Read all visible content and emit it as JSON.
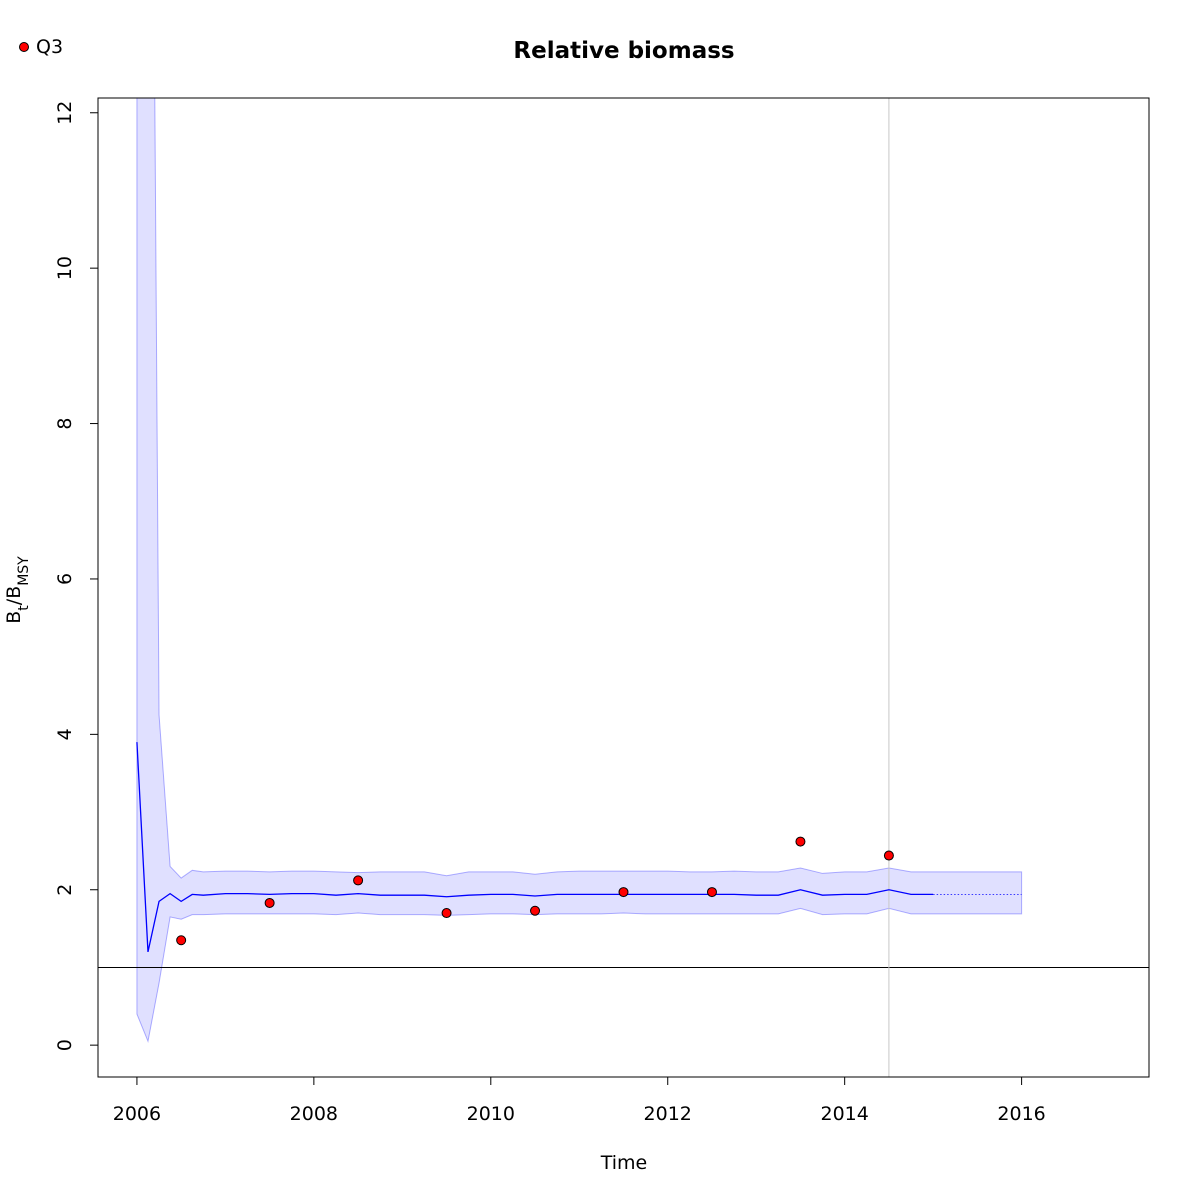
{
  "chart_data": {
    "type": "line",
    "title": "Relative biomass",
    "xlabel": "Time",
    "ylabel_parts": [
      {
        "text": "B"
      },
      {
        "text": "t",
        "sub": true
      },
      {
        "text": "/B"
      },
      {
        "text": "MSY",
        "sub": true
      }
    ],
    "xlim": [
      2005.56,
      2017.44
    ],
    "ylim": [
      -0.41,
      12.19
    ],
    "xticks": [
      2006,
      2008,
      2010,
      2012,
      2014,
      2016
    ],
    "yticks": [
      0,
      2,
      4,
      6,
      8,
      10,
      12
    ],
    "hline": 1,
    "vline": 2014.5,
    "band": {
      "color": "#0000ff",
      "x": [
        2006,
        2006.125,
        2006.25,
        2006.375,
        2006.5,
        2006.625,
        2006.75,
        2007,
        2007.25,
        2007.5,
        2007.75,
        2008,
        2008.25,
        2008.5,
        2008.75,
        2009,
        2009.25,
        2009.5,
        2009.75,
        2010,
        2010.25,
        2010.5,
        2010.75,
        2011,
        2011.25,
        2011.5,
        2011.75,
        2012,
        2012.25,
        2012.5,
        2012.75,
        2013,
        2013.25,
        2013.5,
        2013.75,
        2014,
        2014.25,
        2014.5,
        2014.75,
        2015,
        2016
      ],
      "upper": [
        25,
        25,
        4.25,
        2.3,
        2.15,
        2.25,
        2.23,
        2.24,
        2.24,
        2.23,
        2.24,
        2.24,
        2.23,
        2.22,
        2.23,
        2.23,
        2.23,
        2.18,
        2.23,
        2.23,
        2.23,
        2.2,
        2.23,
        2.24,
        2.24,
        2.24,
        2.24,
        2.24,
        2.23,
        2.23,
        2.24,
        2.23,
        2.23,
        2.28,
        2.21,
        2.23,
        2.23,
        2.28,
        2.23,
        2.23,
        2.23
      ],
      "lower": [
        0.4,
        0.05,
        0.8,
        1.65,
        1.62,
        1.68,
        1.68,
        1.69,
        1.69,
        1.69,
        1.69,
        1.69,
        1.68,
        1.7,
        1.68,
        1.68,
        1.68,
        1.67,
        1.68,
        1.69,
        1.69,
        1.68,
        1.69,
        1.69,
        1.69,
        1.7,
        1.69,
        1.69,
        1.69,
        1.69,
        1.69,
        1.69,
        1.69,
        1.76,
        1.68,
        1.69,
        1.69,
        1.76,
        1.69,
        1.69,
        1.69
      ]
    },
    "series": [
      {
        "color": "#0000ff",
        "x": [
          2006,
          2006.125,
          2006.25,
          2006.375,
          2006.5,
          2006.625,
          2006.75,
          2007,
          2007.25,
          2007.5,
          2007.75,
          2008,
          2008.25,
          2008.5,
          2008.75,
          2009,
          2009.25,
          2009.5,
          2009.75,
          2010,
          2010.25,
          2010.5,
          2010.75,
          2011,
          2011.25,
          2011.5,
          2011.75,
          2012,
          2012.25,
          2012.5,
          2012.75,
          2013,
          2013.25,
          2013.5,
          2013.75,
          2014,
          2014.25,
          2014.5,
          2014.75,
          2015
        ],
        "values": [
          3.9,
          1.2,
          1.85,
          1.95,
          1.85,
          1.94,
          1.93,
          1.95,
          1.95,
          1.94,
          1.95,
          1.95,
          1.93,
          1.95,
          1.93,
          1.93,
          1.93,
          1.91,
          1.93,
          1.94,
          1.94,
          1.92,
          1.94,
          1.94,
          1.94,
          1.94,
          1.94,
          1.94,
          1.94,
          1.94,
          1.94,
          1.93,
          1.93,
          2.0,
          1.93,
          1.94,
          1.94,
          2.0,
          1.94,
          1.94
        ]
      },
      {
        "color": "#0000ff",
        "dashed": true,
        "x": [
          2015,
          2016
        ],
        "values": [
          1.94,
          1.94
        ]
      }
    ],
    "points": {
      "name": "Q3",
      "color": "#ff0000",
      "x": [
        2006.5,
        2007.5,
        2008.5,
        2009.5,
        2010.5,
        2011.5,
        2012.5,
        2013.5,
        2014.5
      ],
      "values": [
        1.35,
        1.83,
        2.12,
        1.7,
        1.73,
        1.97,
        1.97,
        2.62,
        2.44
      ]
    }
  }
}
